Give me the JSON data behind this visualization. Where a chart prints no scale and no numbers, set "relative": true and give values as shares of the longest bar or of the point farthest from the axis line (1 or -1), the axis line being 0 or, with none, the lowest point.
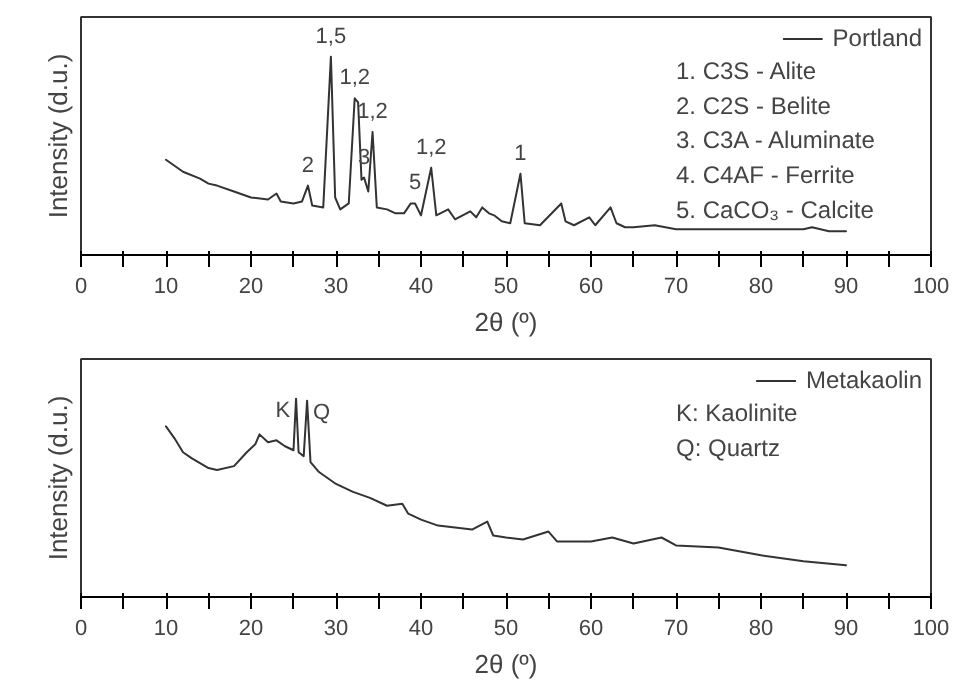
{
  "chart_data": [
    {
      "type": "line",
      "relative": true,
      "xlabel": "2θ (º)",
      "ylabel": "Intensity (d.u.)",
      "xlim": [
        0,
        100
      ],
      "xticks": [
        0,
        {
          "value": 5,
          "label": null
        },
        10,
        {
          "value": 15,
          "label": null
        },
        20,
        {
          "value": 25,
          "label": null
        },
        30,
        {
          "value": 35,
          "label": null
        },
        40,
        {
          "value": 45,
          "label": null
        },
        50,
        {
          "value": 55,
          "label": null
        },
        60,
        {
          "value": 65,
          "label": null
        },
        70,
        {
          "value": 75,
          "label": null
        },
        80,
        {
          "value": 85,
          "label": null
        },
        90,
        {
          "value": 95,
          "label": null
        },
        100
      ],
      "tick_labels": "x",
      "legend": "top right",
      "grid": false,
      "x": [
        10,
        11,
        12,
        14,
        15,
        16,
        18,
        20,
        22,
        23,
        23.5,
        25,
        26,
        26.7,
        27.2,
        28.5,
        29.4,
        29.9,
        30.5,
        31.5,
        32.2,
        32.6,
        33.0,
        33.3,
        33.8,
        34.3,
        34.8,
        36,
        37,
        38,
        38.8,
        39.3,
        40,
        41.2,
        41.8,
        43.2,
        44,
        45.8,
        46.5,
        47.2,
        48,
        48.6,
        49.5,
        50.5,
        51.7,
        52.2,
        54,
        56.5,
        57,
        58,
        59.8,
        60.5,
        62.3,
        63,
        64,
        65,
        67.5,
        70,
        75,
        80,
        85,
        86,
        88,
        90
      ],
      "series": [
        {
          "name": "Portland",
          "color": "#333333",
          "values": [
            0.48,
            0.45,
            0.42,
            0.385,
            0.36,
            0.35,
            0.32,
            0.29,
            0.28,
            0.31,
            0.27,
            0.26,
            0.27,
            0.35,
            0.25,
            0.24,
            1.0,
            0.29,
            0.23,
            0.26,
            0.79,
            0.77,
            0.38,
            0.39,
            0.32,
            0.62,
            0.24,
            0.23,
            0.21,
            0.21,
            0.26,
            0.26,
            0.2,
            0.44,
            0.2,
            0.23,
            0.18,
            0.22,
            0.19,
            0.24,
            0.21,
            0.2,
            0.17,
            0.16,
            0.41,
            0.16,
            0.15,
            0.26,
            0.17,
            0.15,
            0.19,
            0.15,
            0.24,
            0.16,
            0.14,
            0.14,
            0.15,
            0.13,
            0.13,
            0.13,
            0.13,
            0.14,
            0.12,
            0.12
          ]
        }
      ],
      "annotations": [
        {
          "text": "2",
          "x": 26.7,
          "y": 0.35
        },
        {
          "text": "1,5",
          "x": 29.4,
          "y": 1.0
        },
        {
          "text": "1,2",
          "x": 32.2,
          "y": 0.79
        },
        {
          "text": "3",
          "x": 33.3,
          "y": 0.39
        },
        {
          "text": "1,2",
          "x": 34.3,
          "y": 0.62
        },
        {
          "text": "5",
          "x": 39.3,
          "y": 0.26
        },
        {
          "text": "1,2",
          "x": 41.2,
          "y": 0.44
        },
        {
          "text": "1",
          "x": 51.7,
          "y": 0.41
        },
        "1. C3S - Alite",
        "2. C2S - Belite",
        "3. C3A - Aluminate",
        "4. C4AF - Ferrite",
        "5. CaCO₃ - Calcite"
      ]
    },
    {
      "type": "line",
      "relative": true,
      "xlabel": "2θ (º)",
      "ylabel": "Intensity (d.u.)",
      "xlim": [
        0,
        100
      ],
      "xticks": [
        0,
        {
          "value": 5,
          "label": null
        },
        10,
        {
          "value": 15,
          "label": null
        },
        20,
        {
          "value": 25,
          "label": null
        },
        30,
        {
          "value": 35,
          "label": null
        },
        40,
        {
          "value": 45,
          "label": null
        },
        50,
        {
          "value": 55,
          "label": null
        },
        60,
        {
          "value": 65,
          "label": null
        },
        70,
        {
          "value": 75,
          "label": null
        },
        80,
        {
          "value": 85,
          "label": null
        },
        90,
        {
          "value": 95,
          "label": null
        },
        100
      ],
      "tick_labels": "x",
      "legend": "top right",
      "grid": false,
      "x": [
        10,
        11,
        12,
        13,
        15,
        16,
        18,
        19.5,
        20.5,
        21,
        22,
        23,
        24,
        25,
        25.3,
        25.6,
        26.2,
        26.6,
        27,
        28,
        30,
        32,
        34,
        36,
        37.8,
        38.5,
        40,
        42,
        44,
        46,
        47.8,
        48.5,
        50,
        52,
        55,
        56,
        60,
        62.5,
        65,
        68.3,
        70,
        75,
        80,
        85,
        90
      ],
      "series": [
        {
          "name": "Metakaolin",
          "color": "#333333",
          "values": [
            0.86,
            0.8,
            0.73,
            0.7,
            0.65,
            0.64,
            0.66,
            0.73,
            0.77,
            0.82,
            0.78,
            0.79,
            0.76,
            0.74,
            1.0,
            0.73,
            0.71,
            0.99,
            0.68,
            0.63,
            0.57,
            0.53,
            0.5,
            0.46,
            0.47,
            0.42,
            0.39,
            0.36,
            0.35,
            0.34,
            0.38,
            0.31,
            0.3,
            0.29,
            0.33,
            0.28,
            0.28,
            0.3,
            0.27,
            0.3,
            0.26,
            0.25,
            0.21,
            0.18,
            0.16
          ]
        }
      ],
      "annotations": [
        {
          "text": "K",
          "x": 25.3,
          "y": 1.0
        },
        {
          "text": "Q",
          "x": 26.6,
          "y": 0.99
        },
        "K: Kaolinite",
        "Q: Quartz"
      ]
    }
  ]
}
